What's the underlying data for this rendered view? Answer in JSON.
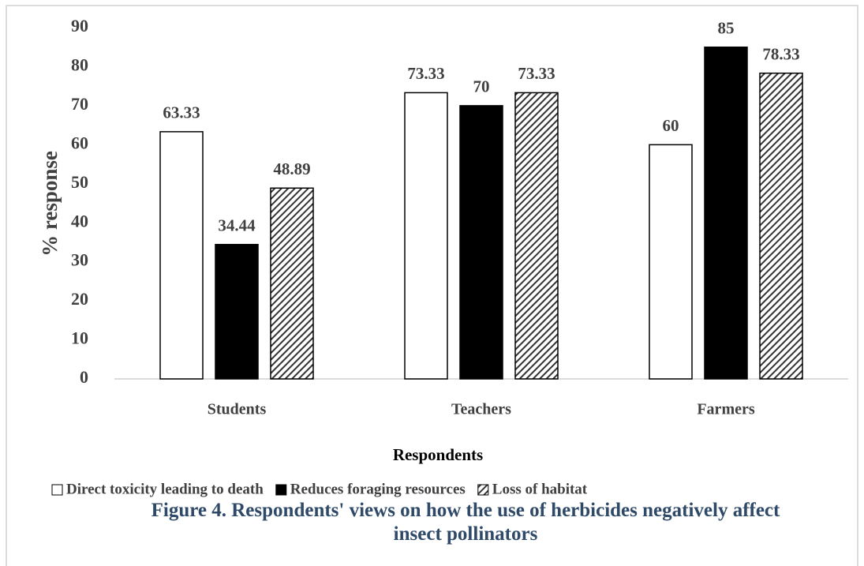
{
  "chart_data": {
    "type": "bar",
    "title": "Figure 4. Respondents' views on how the use of herbicides negatively affect insect pollinators",
    "x_label": "Respondents",
    "y_label": "% response",
    "categories": [
      "Students",
      "Teachers",
      "Farmers"
    ],
    "series": [
      {
        "name": "Direct toxicity leading to death",
        "color": "#ffffff",
        "values": [
          63.33,
          73.33,
          60
        ]
      },
      {
        "name": "Reduces foraging resources",
        "color": "#000000",
        "values": [
          34.44,
          70,
          85
        ]
      },
      {
        "name": "Loss of habitat",
        "color": "#333333",
        "pattern": "diagonal-stripes",
        "values": [
          48.89,
          73.33,
          78.33
        ]
      }
    ],
    "ylim": [
      0,
      90
    ],
    "yticks": [
      0,
      10,
      20,
      30,
      40,
      50,
      60,
      70,
      80,
      90
    ],
    "grid": false,
    "legend": "bottom"
  }
}
